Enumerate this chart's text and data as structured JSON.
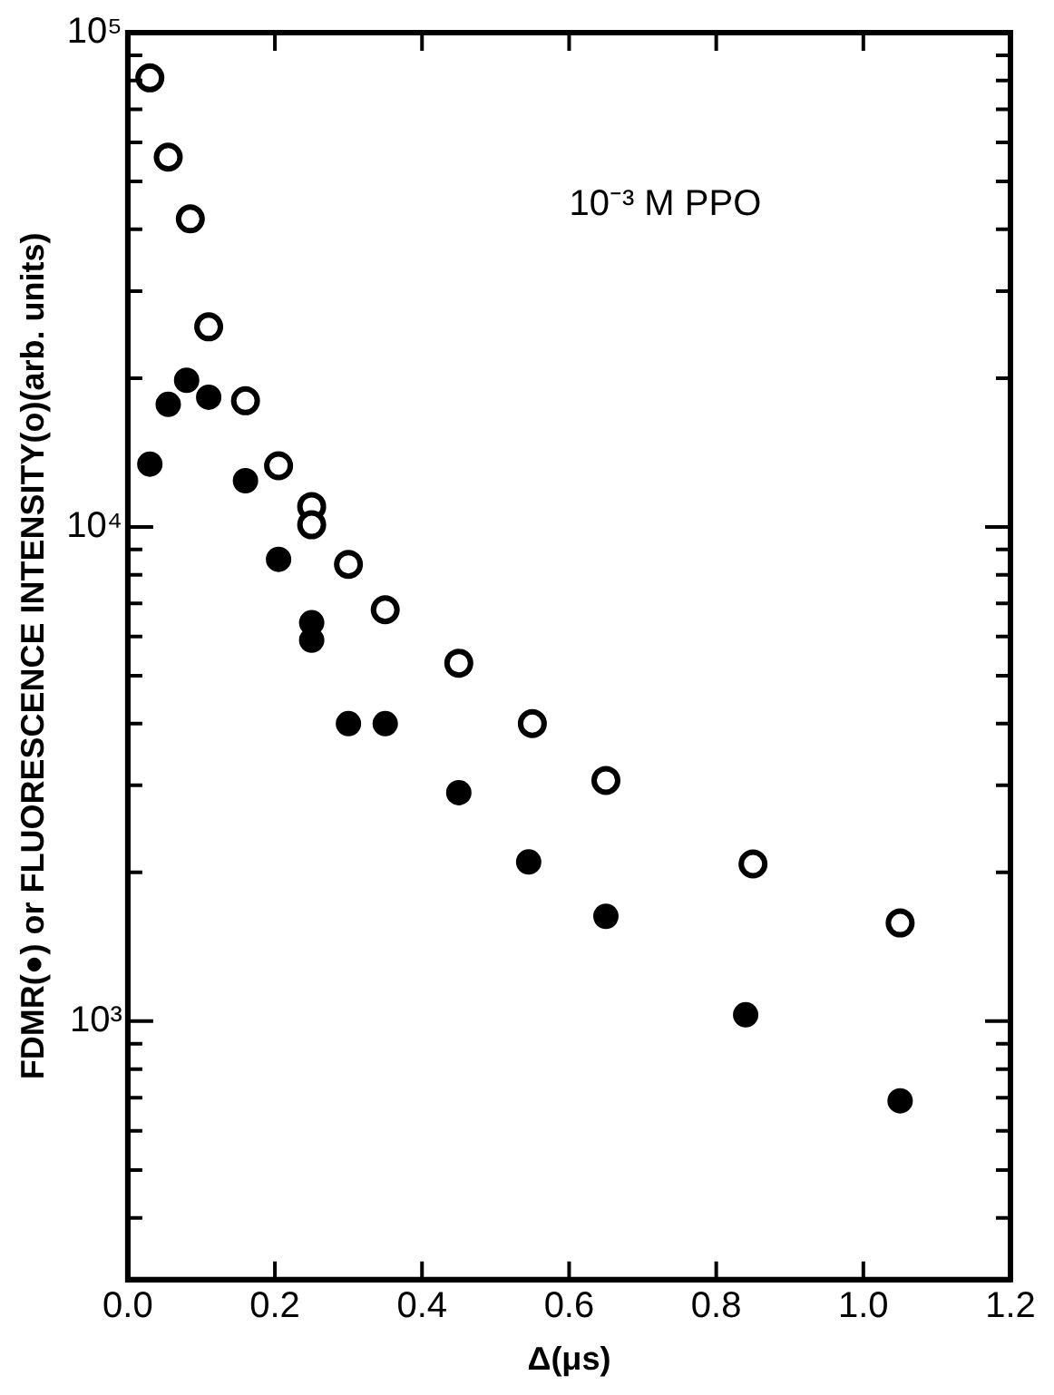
{
  "chart_data": {
    "type": "scatter",
    "xlabel": "Δ(μs)",
    "ylabel": "FDMR(●) or FLUORESCENCE INTENSITY(o)(arb. units)",
    "annotations": [
      "10⁻³ M PPO"
    ],
    "log": "y",
    "grid": false,
    "legend": false,
    "marker": "circle",
    "xlim": [
      0,
      1.2
    ],
    "xticks": [
      {
        "value": 0,
        "label": "0.0"
      },
      {
        "value": 0.2,
        "label": "0.2"
      },
      {
        "value": 0.4,
        "label": "0.4"
      },
      {
        "value": 0.6,
        "label": "0.6"
      },
      {
        "value": 0.8,
        "label": "0.8"
      },
      {
        "value": 1,
        "label": "1.0"
      },
      {
        "value": 1.2,
        "label": "1.2"
      }
    ],
    "ylim": [
      300,
      100000
    ],
    "yticks": [
      {
        "value": 400,
        "label": null
      },
      {
        "value": 500,
        "label": null
      },
      {
        "value": 600,
        "label": null
      },
      {
        "value": 700,
        "label": null
      },
      {
        "value": 800,
        "label": null
      },
      {
        "value": 900,
        "label": null
      },
      {
        "value": 1000,
        "label": "10³"
      },
      {
        "value": 2000,
        "label": null
      },
      {
        "value": 3000,
        "label": null
      },
      {
        "value": 4000,
        "label": null
      },
      {
        "value": 5000,
        "label": null
      },
      {
        "value": 6000,
        "label": null
      },
      {
        "value": 7000,
        "label": null
      },
      {
        "value": 8000,
        "label": null
      },
      {
        "value": 9000,
        "label": null
      },
      {
        "value": 10000,
        "label": "10⁴"
      },
      {
        "value": 20000,
        "label": null
      },
      {
        "value": 30000,
        "label": null
      },
      {
        "value": 40000,
        "label": null
      },
      {
        "value": 50000,
        "label": null
      },
      {
        "value": 60000,
        "label": null
      },
      {
        "value": 70000,
        "label": null
      },
      {
        "value": 80000,
        "label": null
      },
      {
        "value": 90000,
        "label": null
      },
      {
        "value": 100000,
        "label": "10⁵"
      }
    ],
    "series": [
      {
        "color": "#000000",
        "x": [
          0.03,
          0.055,
          0.08,
          0.11,
          0.16,
          0.205,
          0.25,
          0.25,
          0.3,
          0.35,
          0.45,
          0.545,
          0.65,
          0.84,
          1.05
        ],
        "values": [
          13400,
          17700,
          19800,
          18300,
          12400,
          8600,
          6400,
          5900,
          4000,
          4000,
          2900,
          2100,
          1630,
          1030,
          690
        ]
      },
      {
        "color": "#000000",
        "x": [
          0.03,
          0.055,
          0.085,
          0.11,
          0.16,
          0.205,
          0.25,
          0.25,
          0.3,
          0.35,
          0.45,
          0.55,
          0.65,
          0.85,
          1.05
        ],
        "values": [
          81000,
          56000,
          42000,
          25400,
          18000,
          13300,
          11000,
          10100,
          8400,
          6800,
          5300,
          4000,
          3070,
          2080,
          1580
        ]
      }
    ]
  }
}
